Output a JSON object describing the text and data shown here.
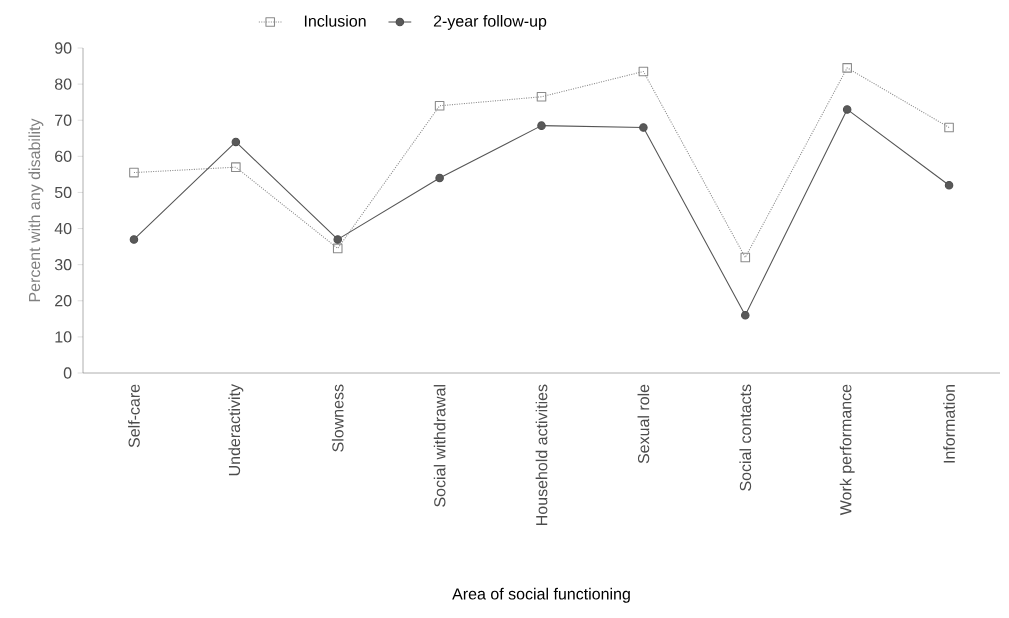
{
  "chart_data": {
    "type": "line",
    "xlabel": "Area of social functioning",
    "ylabel": "Percent with any disability",
    "categories": [
      "Self-care",
      "Underactivity",
      "Slowness",
      "Social withdrawal",
      "Household activities",
      "Sexual role",
      "Social contacts",
      "Work performance",
      "Information"
    ],
    "series": [
      {
        "name": "Inclusion",
        "color": "#8a8a8a",
        "marker": "square",
        "line_style": "dotted",
        "values": [
          55.5,
          57,
          34.5,
          74,
          76.5,
          83.5,
          32,
          84.5,
          68
        ]
      },
      {
        "name": "2-year follow-up",
        "color": "#555555",
        "marker": "circle",
        "line_style": "solid",
        "values": [
          37,
          64,
          37,
          54,
          68.5,
          68,
          16,
          73,
          52
        ]
      }
    ],
    "ylim": [
      0,
      90
    ],
    "yticks": [
      0,
      10,
      20,
      30,
      40,
      50,
      60,
      70,
      80,
      90
    ],
    "legend": "top",
    "grid": false
  }
}
